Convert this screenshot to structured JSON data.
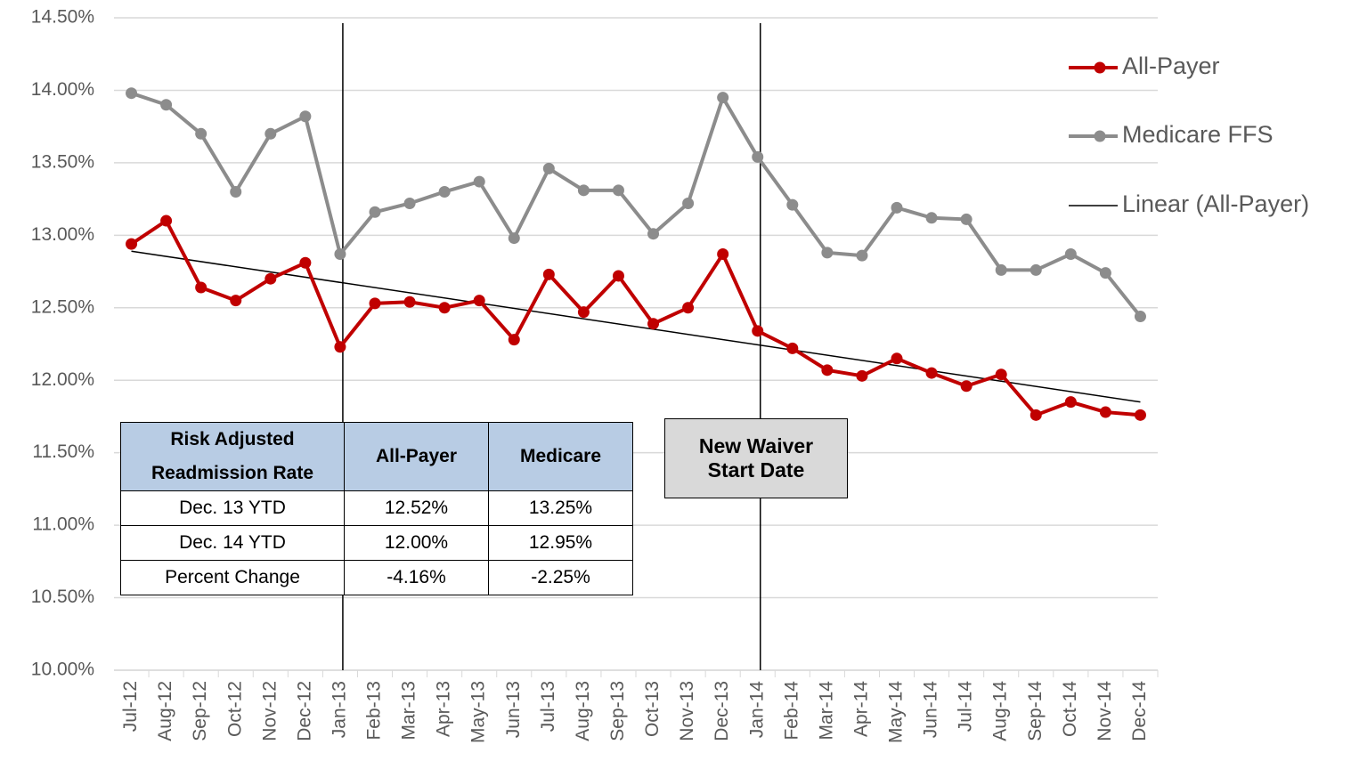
{
  "chart_data": {
    "type": "line",
    "categories": [
      "Jul-12",
      "Aug-12",
      "Sep-12",
      "Oct-12",
      "Nov-12",
      "Dec-12",
      "Jan-13",
      "Feb-13",
      "Mar-13",
      "Apr-13",
      "May-13",
      "Jun-13",
      "Jul-13",
      "Aug-13",
      "Sep-13",
      "Oct-13",
      "Nov-13",
      "Dec-13",
      "Jan-14",
      "Feb-14",
      "Mar-14",
      "Apr-14",
      "May-14",
      "Jun-14",
      "Jul-14",
      "Aug-14",
      "Sep-14",
      "Oct-14",
      "Nov-14",
      "Dec-14"
    ],
    "series": [
      {
        "name": "All-Payer",
        "color": "#c00000",
        "values": [
          12.94,
          13.1,
          12.64,
          12.55,
          12.7,
          12.81,
          12.23,
          12.53,
          12.54,
          12.5,
          12.55,
          12.28,
          12.73,
          12.47,
          12.72,
          12.39,
          12.5,
          12.87,
          12.34,
          12.22,
          12.07,
          12.03,
          12.15,
          12.05,
          11.96,
          12.04,
          11.76,
          11.85,
          11.78,
          11.76
        ]
      },
      {
        "name": "Medicare FFS",
        "color": "#8c8c8c",
        "values": [
          13.98,
          13.9,
          13.7,
          13.3,
          13.7,
          13.82,
          12.87,
          13.16,
          13.22,
          13.3,
          13.37,
          12.98,
          13.46,
          13.31,
          13.31,
          13.01,
          13.22,
          13.95,
          13.54,
          13.21,
          12.88,
          12.86,
          13.19,
          13.12,
          13.11,
          12.76,
          12.76,
          12.87,
          12.74,
          12.44
        ]
      }
    ],
    "trendline": {
      "name": "Linear (All-Payer)",
      "color": "#000000",
      "values": [
        12.89,
        11.85
      ]
    },
    "vlines": [
      "Jan-13",
      "Jan-14"
    ],
    "annotation": "New Waiver Start Date",
    "ylim": [
      10,
      14.5
    ],
    "yticks": [
      {
        "value": 10,
        "label": "10.00%"
      },
      {
        "value": 10.5,
        "label": "10.50%"
      },
      {
        "value": 11,
        "label": "11.00%"
      },
      {
        "value": 11.5,
        "label": "11.50%"
      },
      {
        "value": 12,
        "label": "12.00%"
      },
      {
        "value": 12.5,
        "label": "12.50%"
      },
      {
        "value": 13,
        "label": "13.00%"
      },
      {
        "value": 13.5,
        "label": "13.50%"
      },
      {
        "value": 14,
        "label": "14.00%"
      },
      {
        "value": 14.5,
        "label": "14.50%"
      }
    ],
    "grid": true,
    "legend": "right"
  },
  "table": {
    "header": [
      "Risk Adjusted Readmission Rate",
      "All-Payer",
      "Medicare"
    ],
    "rows": [
      [
        "Dec. 13 YTD",
        "12.52%",
        "13.25%"
      ],
      [
        "Dec. 14 YTD",
        "12.00%",
        "12.95%"
      ],
      [
        "Percent Change",
        "-4.16%",
        "-2.25%"
      ]
    ]
  }
}
